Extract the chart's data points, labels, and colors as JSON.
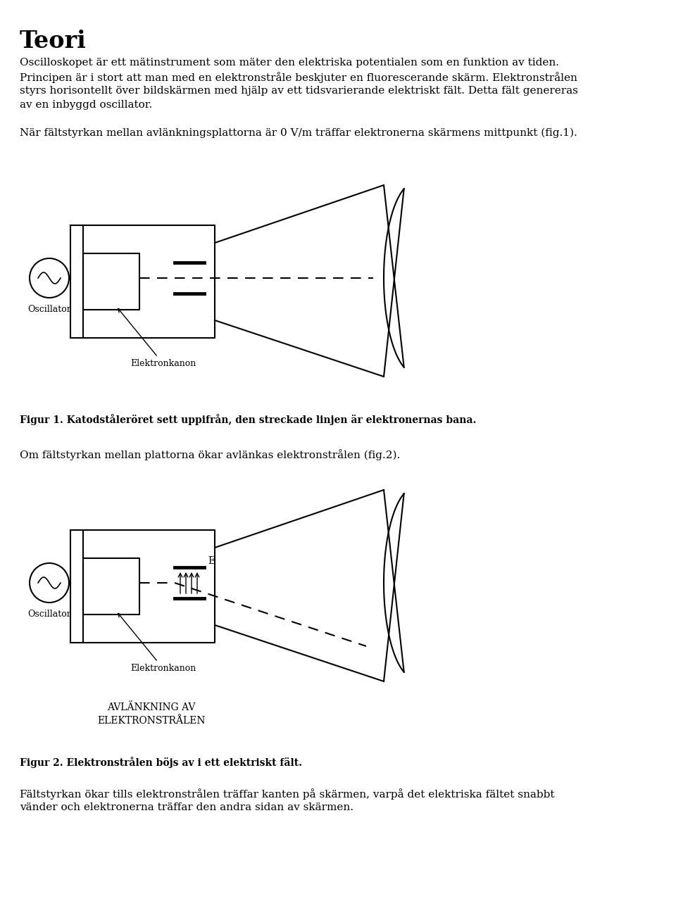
{
  "bg_color": "#ffffff",
  "text_color": "#000000",
  "title": "Teori",
  "paragraph1": "Oscilloskopet är ett mätinstrument som mäter den elektriska potentialen som en funktion av tiden.\nPrincipen är i stort att man med en elektronstråle beskjuter en fluorescerande skärm. Elektronstrålen\nstyrs horisontellt över bildskärmen med hjälp av ett tidsvarierande elektriskt fält. Detta fält genereras\nav en inbyggd oscillator.",
  "paragraph2": "När fältstyrkan mellan avlänkningsplattorna är 0 V/m träffar elektronerna skärmens mittpunkt (fig.1).",
  "fig1_caption": "Figur 1. Katodståleröret sett uppifrån, den streckade linjen är elektronernas bana.",
  "paragraph3": "Om fältstyrkan mellan plattorna ökar avlänkas elektronstrålen (fig.2).",
  "fig2_caption": "Figur 2. Elektronstrålen böjs av i ett elektriskt fält.",
  "paragraph4": "Fältstyrkan ökar tills elektronstrålen träffar kanten på skärmen, varpå det elektriska fältet snabbt\nvänder och elektronerna träffar den andra sidan av skärmen.",
  "avlankning_label": "AVLÄNKNING AV\nELEKTRONSTRÅLEN",
  "oscillator_label": "Oscillator",
  "elektronkanon_label": "Elektronkanon",
  "E_label": "E"
}
